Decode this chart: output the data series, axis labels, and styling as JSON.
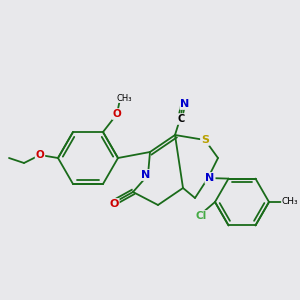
{
  "bg_color": "#e8e8eb",
  "bond_color": "#1a6b1a",
  "atom_colors": {
    "N": "#0000cc",
    "O": "#cc0000",
    "S": "#b8a000",
    "Cl": "#44aa44",
    "C": "#000000"
  },
  "figsize": [
    3.0,
    3.0
  ],
  "dpi": 100,
  "lw": 1.3
}
